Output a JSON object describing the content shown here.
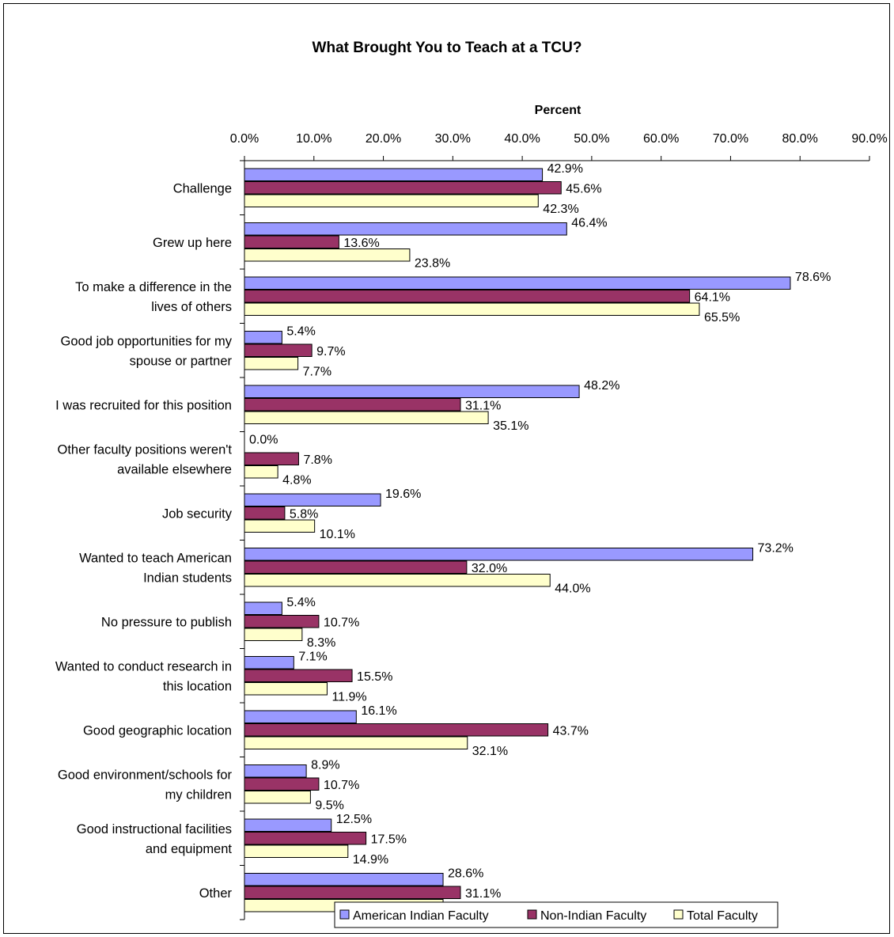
{
  "chart_data": {
    "type": "bar",
    "orientation": "horizontal",
    "title": "What Brought You to Teach at a TCU?",
    "xlabel": "Percent",
    "xlim": [
      0,
      90
    ],
    "xticks": [
      "0.0%",
      "10.0%",
      "20.0%",
      "30.0%",
      "40.0%",
      "50.0%",
      "60.0%",
      "70.0%",
      "80.0%",
      "90.0%"
    ],
    "tick_position": "top",
    "grid": false,
    "legend_position": "bottom",
    "categories": [
      [
        "Challenge"
      ],
      [
        "Grew up here"
      ],
      [
        "To make a difference in the",
        "lives of others"
      ],
      [
        "Good job opportunities for my",
        "spouse or partner"
      ],
      [
        "I was recruited for this position"
      ],
      [
        "Other faculty positions weren't",
        "available elsewhere"
      ],
      [
        "Job security"
      ],
      [
        "Wanted to teach American",
        "Indian students"
      ],
      [
        "No pressure to publish"
      ],
      [
        "Wanted to conduct research in",
        "this location"
      ],
      [
        "Good geographic location"
      ],
      [
        "Good environment/schools for",
        "my children"
      ],
      [
        "Good instructional facilities",
        "and equipment"
      ],
      [
        "Other"
      ]
    ],
    "series": [
      {
        "name": "American Indian Faculty",
        "color": "#9999ff",
        "values": [
          42.9,
          46.4,
          78.6,
          5.4,
          48.2,
          0.0,
          19.6,
          73.2,
          5.4,
          7.1,
          16.1,
          8.9,
          12.5,
          28.6
        ],
        "labels": [
          "42.9%",
          "46.4%",
          "78.6%",
          "5.4%",
          "48.2%",
          "0.0%",
          "19.6%",
          "73.2%",
          "5.4%",
          "7.1%",
          "16.1%",
          "8.9%",
          "12.5%",
          "28.6%"
        ]
      },
      {
        "name": "Non-Indian Faculty",
        "color": "#993366",
        "values": [
          45.6,
          13.6,
          64.1,
          9.7,
          31.1,
          7.8,
          5.8,
          32.0,
          10.7,
          15.5,
          43.7,
          10.7,
          17.5,
          31.1
        ],
        "labels": [
          "45.6%",
          "13.6%",
          "64.1%",
          "9.7%",
          "31.1%",
          "7.8%",
          "5.8%",
          "32.0%",
          "10.7%",
          "15.5%",
          "43.7%",
          "10.7%",
          "17.5%",
          "31.1%"
        ]
      },
      {
        "name": "Total Faculty",
        "color": "#ffffcc",
        "values": [
          42.3,
          23.8,
          65.5,
          7.7,
          35.1,
          4.8,
          10.1,
          44.0,
          8.3,
          11.9,
          32.1,
          9.5,
          14.9,
          28.6
        ],
        "labels": [
          "42.3%",
          "23.8%",
          "65.5%",
          "7.7%",
          "35.1%",
          "4.8%",
          "10.1%",
          "44.0%",
          "8.3%",
          "11.9%",
          "32.1%",
          "9.5%",
          "14.9%",
          "28.6%"
        ]
      }
    ]
  }
}
